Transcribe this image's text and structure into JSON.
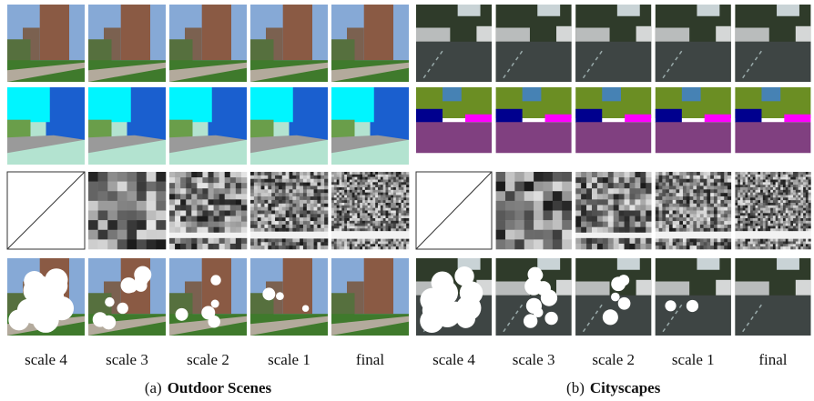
{
  "panels": [
    {
      "columns": [
        "scale 4",
        "scale 3",
        "scale 2",
        "scale 1",
        "final"
      ],
      "caption": {
        "label": "(a)",
        "title": "Outdoor Scenes"
      }
    },
    {
      "columns": [
        "scale 4",
        "scale 3",
        "scale 2",
        "scale 1",
        "final"
      ],
      "caption": {
        "label": "(b)",
        "title": "Cityscapes"
      }
    }
  ]
}
